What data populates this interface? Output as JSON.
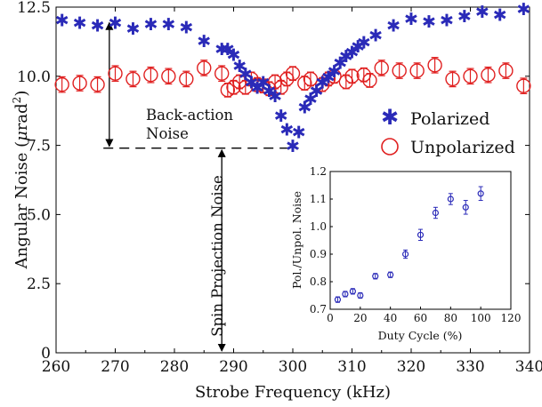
{
  "chart_data": [
    {
      "type": "scatter",
      "xlabel": "Strobe Frequency (kHz)",
      "ylabel": "Angular Noise (μrad²)",
      "xlim": [
        260,
        340
      ],
      "ylim": [
        0,
        12.5
      ],
      "x_ticks": [
        "260",
        "270",
        "280",
        "290",
        "300",
        "310",
        "320",
        "330",
        "340"
      ],
      "y_ticks": [
        "0",
        "2.5",
        "5.0",
        "7.5",
        "10.0",
        "12.5"
      ],
      "legend_position": "right",
      "grid": false,
      "series": [
        {
          "name": "Polarized",
          "marker": "asterisk",
          "color": "#2a2ab8",
          "points": [
            {
              "x": 261,
              "y": 12.05
            },
            {
              "x": 264,
              "y": 11.95
            },
            {
              "x": 267,
              "y": 11.85
            },
            {
              "x": 270,
              "y": 11.95
            },
            {
              "x": 273,
              "y": 11.75
            },
            {
              "x": 276,
              "y": 11.9
            },
            {
              "x": 279,
              "y": 11.9
            },
            {
              "x": 282,
              "y": 11.8
            },
            {
              "x": 285,
              "y": 11.3
            },
            {
              "x": 288,
              "y": 11.0
            },
            {
              "x": 289,
              "y": 11.0
            },
            {
              "x": 290,
              "y": 10.8
            },
            {
              "x": 291,
              "y": 10.4
            },
            {
              "x": 292,
              "y": 10.1
            },
            {
              "x": 293,
              "y": 9.8
            },
            {
              "x": 294,
              "y": 9.6
            },
            {
              "x": 295,
              "y": 9.8
            },
            {
              "x": 296,
              "y": 9.5
            },
            {
              "x": 297,
              "y": 9.3
            },
            {
              "x": 298,
              "y": 8.6
            },
            {
              "x": 299,
              "y": 8.1
            },
            {
              "x": 300,
              "y": 7.5
            },
            {
              "x": 301,
              "y": 8.0
            },
            {
              "x": 302,
              "y": 8.9
            },
            {
              "x": 303,
              "y": 9.2
            },
            {
              "x": 304,
              "y": 9.5
            },
            {
              "x": 305,
              "y": 9.8
            },
            {
              "x": 306,
              "y": 10.0
            },
            {
              "x": 307,
              "y": 10.2
            },
            {
              "x": 308,
              "y": 10.5
            },
            {
              "x": 309,
              "y": 10.75
            },
            {
              "x": 310,
              "y": 10.9
            },
            {
              "x": 311,
              "y": 11.1
            },
            {
              "x": 312,
              "y": 11.25
            },
            {
              "x": 314,
              "y": 11.5
            },
            {
              "x": 317,
              "y": 11.85
            },
            {
              "x": 320,
              "y": 12.1
            },
            {
              "x": 323,
              "y": 12.0
            },
            {
              "x": 326,
              "y": 12.05
            },
            {
              "x": 329,
              "y": 12.2
            },
            {
              "x": 332,
              "y": 12.35
            },
            {
              "x": 335,
              "y": 12.25
            },
            {
              "x": 339,
              "y": 12.45
            }
          ]
        },
        {
          "name": "Unpolarized",
          "marker": "circle",
          "color": "#e02020",
          "points": [
            {
              "x": 261,
              "y": 9.7,
              "err": 0.28
            },
            {
              "x": 264,
              "y": 9.75,
              "err": 0.28
            },
            {
              "x": 267,
              "y": 9.7,
              "err": 0.28
            },
            {
              "x": 270,
              "y": 10.1,
              "err": 0.28
            },
            {
              "x": 273,
              "y": 9.9,
              "err": 0.28
            },
            {
              "x": 276,
              "y": 10.05,
              "err": 0.28
            },
            {
              "x": 279,
              "y": 10.0,
              "err": 0.28
            },
            {
              "x": 282,
              "y": 9.9,
              "err": 0.28
            },
            {
              "x": 285,
              "y": 10.3,
              "err": 0.28
            },
            {
              "x": 288,
              "y": 10.1,
              "err": 0.28
            },
            {
              "x": 289,
              "y": 9.5,
              "err": 0.25
            },
            {
              "x": 290,
              "y": 9.6,
              "err": 0.25
            },
            {
              "x": 291,
              "y": 9.8,
              "err": 0.25
            },
            {
              "x": 292,
              "y": 9.6,
              "err": 0.25
            },
            {
              "x": 293,
              "y": 9.9,
              "err": 0.25
            },
            {
              "x": 294,
              "y": 9.7,
              "err": 0.25
            },
            {
              "x": 295,
              "y": 9.65,
              "err": 0.25
            },
            {
              "x": 296,
              "y": 9.55,
              "err": 0.25
            },
            {
              "x": 297,
              "y": 9.8,
              "err": 0.25
            },
            {
              "x": 298,
              "y": 9.6,
              "err": 0.25
            },
            {
              "x": 299,
              "y": 9.9,
              "err": 0.25
            },
            {
              "x": 300,
              "y": 10.1,
              "err": 0.25
            },
            {
              "x": 302,
              "y": 9.75,
              "err": 0.25
            },
            {
              "x": 303,
              "y": 9.9,
              "err": 0.25
            },
            {
              "x": 305,
              "y": 9.7,
              "err": 0.25
            },
            {
              "x": 306,
              "y": 9.9,
              "err": 0.25
            },
            {
              "x": 307,
              "y": 10.0,
              "err": 0.25
            },
            {
              "x": 309,
              "y": 9.8,
              "err": 0.25
            },
            {
              "x": 310,
              "y": 10.0,
              "err": 0.25
            },
            {
              "x": 312,
              "y": 10.05,
              "err": 0.25
            },
            {
              "x": 313,
              "y": 9.85,
              "err": 0.25
            },
            {
              "x": 315,
              "y": 10.3,
              "err": 0.28
            },
            {
              "x": 318,
              "y": 10.2,
              "err": 0.28
            },
            {
              "x": 321,
              "y": 10.2,
              "err": 0.28
            },
            {
              "x": 324,
              "y": 10.4,
              "err": 0.28
            },
            {
              "x": 327,
              "y": 9.9,
              "err": 0.28
            },
            {
              "x": 330,
              "y": 10.0,
              "err": 0.28
            },
            {
              "x": 333,
              "y": 10.05,
              "err": 0.28
            },
            {
              "x": 336,
              "y": 10.2,
              "err": 0.28
            },
            {
              "x": 339,
              "y": 9.65,
              "err": 0.28
            }
          ]
        }
      ],
      "annotations": {
        "back_action_line1": "Back-action",
        "back_action_line2": "Noise",
        "spin_projection": "Spin Projection Noise",
        "spn_level": 7.4,
        "backaction_top": 12.0,
        "spn_arrow_x": 288,
        "ba_arrow_x": 269
      }
    },
    {
      "type": "scatter",
      "xlabel": "Duty Cycle (%)",
      "ylabel": "Pol./Unpol. Noise",
      "xlim": [
        0,
        120
      ],
      "ylim": [
        0.7,
        1.2
      ],
      "x_ticks": [
        "0",
        "20",
        "40",
        "60",
        "80",
        "100",
        "120"
      ],
      "y_ticks": [
        "0.7",
        "0.8",
        "0.9",
        "1.0",
        "1.1",
        "1.2"
      ],
      "color": "#2a2ab8",
      "points": [
        {
          "x": 5,
          "y": 0.735,
          "err": 0.01
        },
        {
          "x": 10,
          "y": 0.755,
          "err": 0.01
        },
        {
          "x": 15,
          "y": 0.765,
          "err": 0.01
        },
        {
          "x": 20,
          "y": 0.75,
          "err": 0.01
        },
        {
          "x": 30,
          "y": 0.82,
          "err": 0.01
        },
        {
          "x": 40,
          "y": 0.825,
          "err": 0.01
        },
        {
          "x": 50,
          "y": 0.9,
          "err": 0.015
        },
        {
          "x": 60,
          "y": 0.97,
          "err": 0.02
        },
        {
          "x": 70,
          "y": 1.05,
          "err": 0.02
        },
        {
          "x": 80,
          "y": 1.1,
          "err": 0.02
        },
        {
          "x": 90,
          "y": 1.07,
          "err": 0.025
        },
        {
          "x": 100,
          "y": 1.12,
          "err": 0.025
        }
      ]
    }
  ]
}
